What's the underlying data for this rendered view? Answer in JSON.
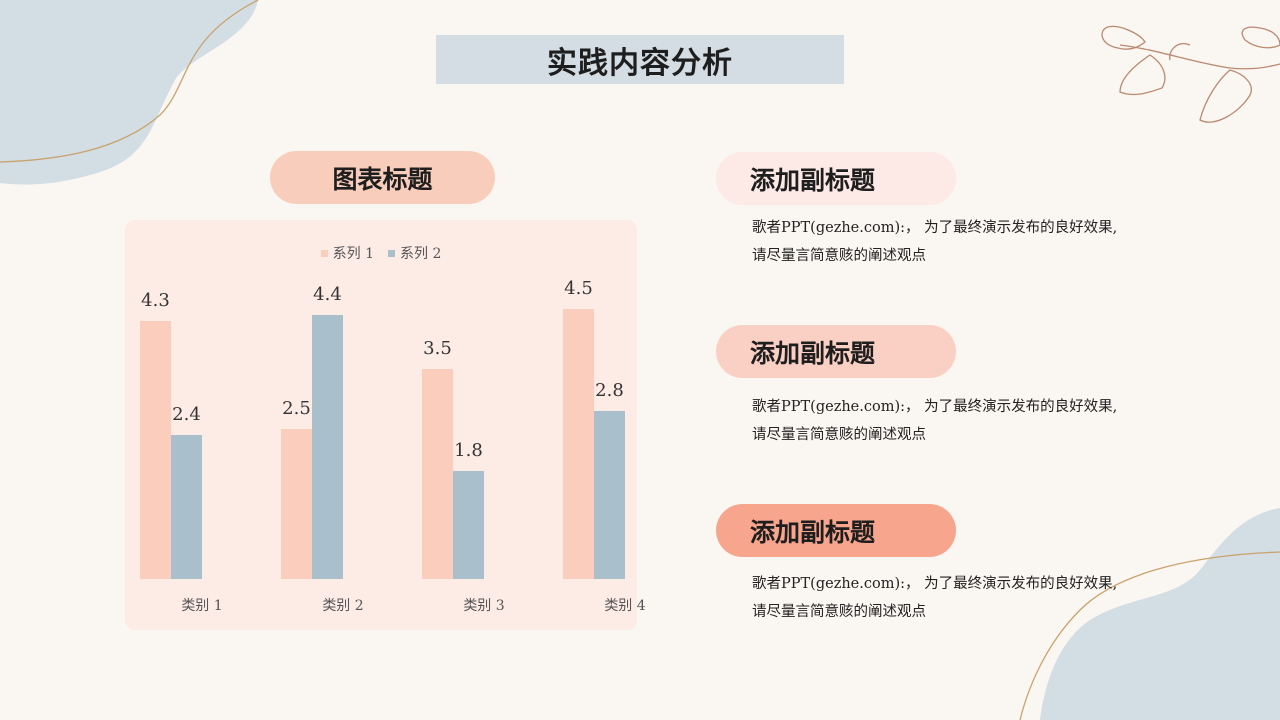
{
  "page": {
    "title": "实践内容分析"
  },
  "chart_title": "图表标题",
  "chart_data": {
    "type": "bar",
    "categories": [
      "类别 1",
      "类别 2",
      "类别 3",
      "类别 4"
    ],
    "series": [
      {
        "name": "系列 1",
        "values": [
          4.3,
          2.5,
          3.5,
          4.5
        ],
        "color": "#fbcdbc"
      },
      {
        "name": "系列 2",
        "values": [
          2.4,
          4.4,
          1.8,
          2.8
        ],
        "color": "#a9bfcc"
      }
    ],
    "ylim": [
      0,
      4.5
    ],
    "grid": false,
    "legend": "top"
  },
  "sections": [
    {
      "title": "添加副标题",
      "line1": "歌者PPT(gezhe.com):， 为了最终演示发布的良好效果,",
      "line2": "请尽量言简意赅的阐述观点"
    },
    {
      "title": "添加副标题",
      "line1": "歌者PPT(gezhe.com):， 为了最终演示发布的良好效果,",
      "line2": "请尽量言简意赅的阐述观点"
    },
    {
      "title": "添加副标题",
      "line1": "歌者PPT(gezhe.com):， 为了最终演示发布的良好效果,",
      "line2": "请尽量言简意赅的阐述观点"
    }
  ],
  "colors": {
    "background": "#faf6f1",
    "blue_blob": "#d2dde4",
    "accent_line": "#c9a26b",
    "branch": "#b98a72"
  },
  "decorations": [
    "blue-blob-top-left",
    "blue-blob-bottom-right",
    "leaf-branch"
  ]
}
